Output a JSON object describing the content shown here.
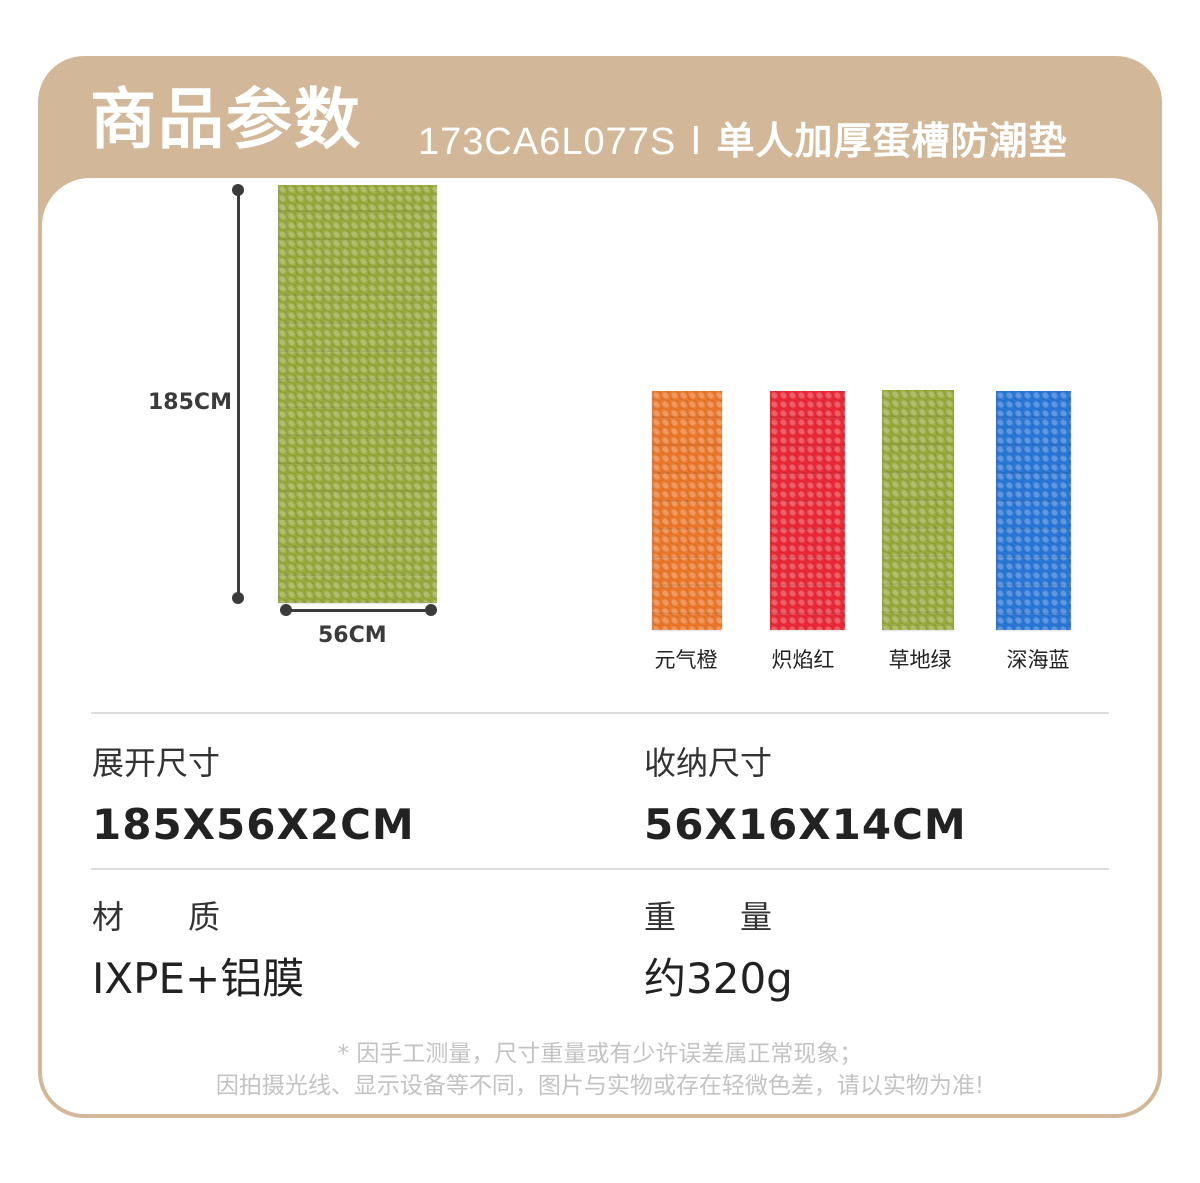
{
  "header": {
    "title": "商品参数",
    "model": "173CA6L077S",
    "separator": "I",
    "product_name": "单人加厚蛋槽防潮垫"
  },
  "dimension_figure": {
    "length_label": "185CM",
    "width_label": "56CM",
    "mat_color": "#9aad3e"
  },
  "colors": [
    {
      "name": "元气橙",
      "hex": "#f07a2c"
    },
    {
      "name": "炽焰红",
      "hex": "#ee2a38"
    },
    {
      "name": "草地绿",
      "hex": "#9aad3e"
    },
    {
      "name": "深海蓝",
      "hex": "#2a78dc"
    }
  ],
  "specs": {
    "unfold_size": {
      "label": "展开尺寸",
      "value": "185X56X2CM"
    },
    "fold_size": {
      "label": "收纳尺寸",
      "value": "56X16X14CM"
    },
    "material": {
      "label": "材　　质",
      "value": "IXPE+铝膜"
    },
    "weight": {
      "label": "重　　量",
      "value": "约320g"
    }
  },
  "notes": {
    "line1": "* 因手工测量，尺寸重量或有少许误差属正常现象；",
    "line2": "因拍摄光线、显示设备等不同，图片与实物或存在轻微色差，请以实物为准!"
  },
  "theme": {
    "header_bg": "#d2b899",
    "text_dark": "#222222",
    "note_gray": "#c3c3c3"
  }
}
